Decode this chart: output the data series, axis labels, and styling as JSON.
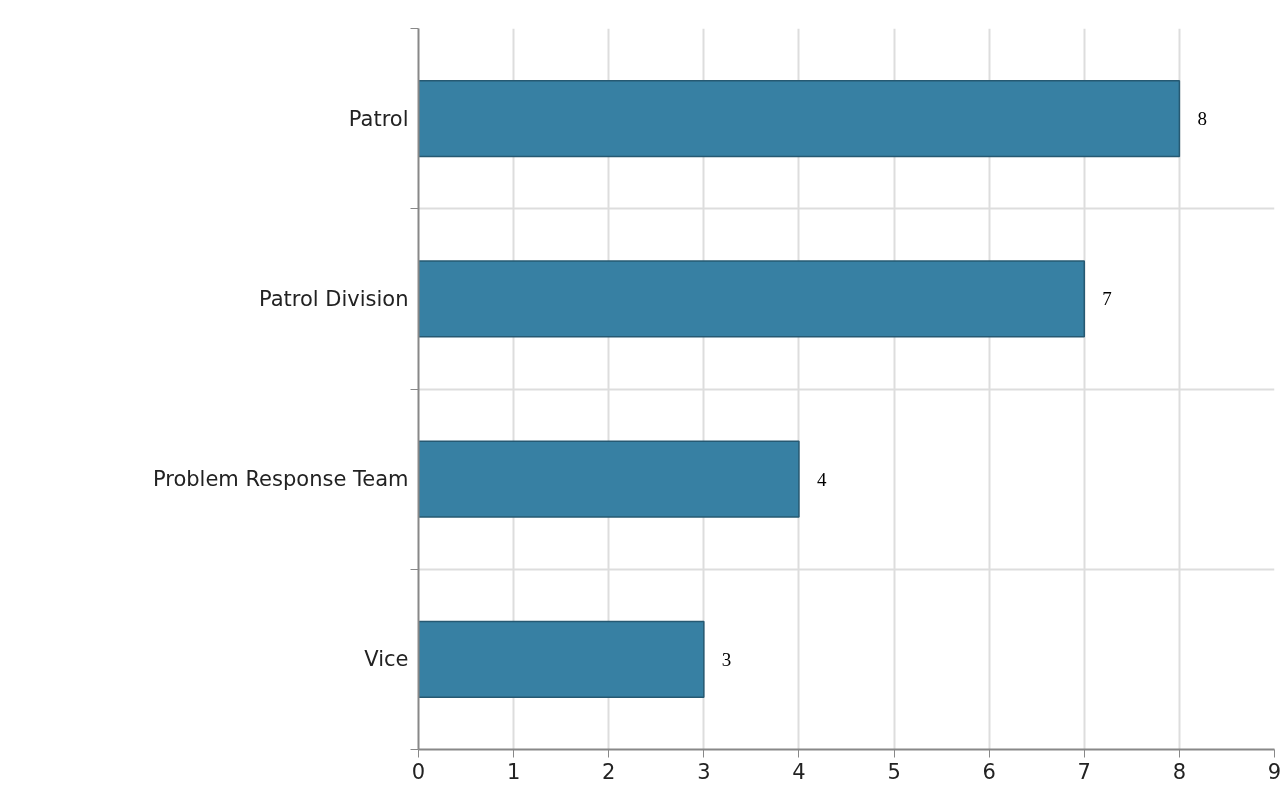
{
  "chart_data": {
    "type": "bar",
    "orientation": "horizontal",
    "categories": [
      "Patrol",
      "Patrol Division",
      "Problem Response Team",
      "Vice"
    ],
    "values": [
      8,
      7,
      4,
      3
    ],
    "color": "#3780a3",
    "xlim": [
      0,
      9
    ],
    "xticks": [
      0,
      1,
      2,
      3,
      4,
      5,
      6,
      7,
      8,
      9
    ],
    "grid": true,
    "data_labels": true
  }
}
